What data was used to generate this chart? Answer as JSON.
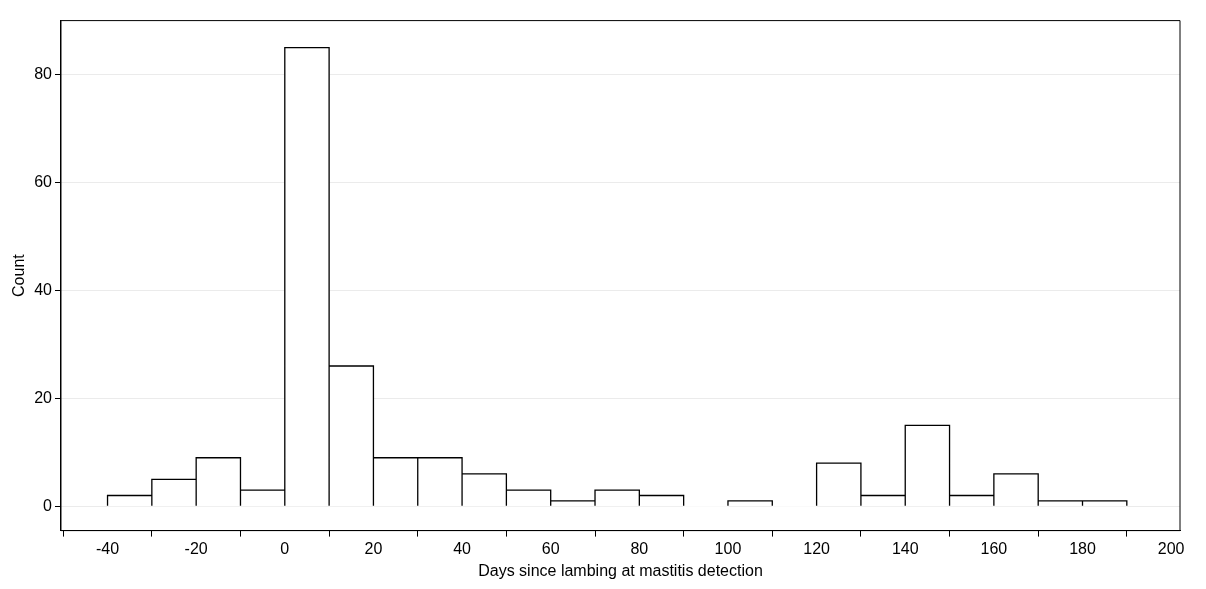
{
  "chart_data": {
    "type": "histogram",
    "xlabel": "Days since lambing at mastitis detection",
    "ylabel": "Count",
    "bins": [
      -40,
      -30,
      -20,
      -10,
      0,
      10,
      20,
      30,
      40,
      50,
      60,
      70,
      80,
      90,
      100,
      110,
      120,
      130,
      140,
      150,
      160,
      170,
      180,
      190
    ],
    "values": [
      2,
      5,
      9,
      3,
      85,
      26,
      9,
      9,
      6,
      3,
      1,
      3,
      2,
      0,
      1,
      0,
      8,
      2,
      15,
      2,
      6,
      1,
      1
    ],
    "color": "#ffffff",
    "xlim": [
      -50.5,
      202
    ],
    "xticks": [
      -40,
      -20,
      0,
      20,
      40,
      60,
      80,
      100,
      120,
      140,
      160,
      180,
      200
    ],
    "ylim": [
      -4.5,
      90
    ],
    "yticks": [
      0,
      20,
      40,
      60,
      80
    ],
    "grid": "y",
    "legend": false
  }
}
